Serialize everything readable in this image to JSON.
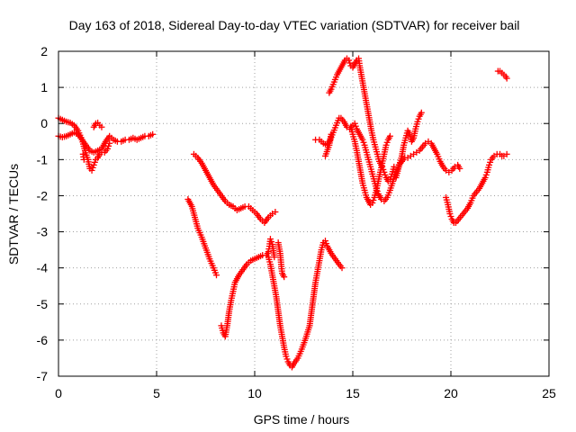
{
  "chart_data": {
    "type": "scatter",
    "title": "Day 163 of 2018, Sidereal Day-to-day VTEC variation (SDTVAR) for receiver bail",
    "xlabel": "GPS time / hours",
    "ylabel": "SDTVAR / TECUs",
    "xlim": [
      0,
      25
    ],
    "ylim": [
      -7,
      2
    ],
    "xticks": [
      0,
      5,
      10,
      15,
      20,
      25
    ],
    "yticks": [
      -7,
      -6,
      -5,
      -4,
      -3,
      -2,
      -1,
      0,
      1,
      2
    ],
    "grid": true,
    "legend": "none",
    "marker": "plus",
    "color": "#ff0000",
    "series": [
      {
        "points": [
          [
            0.0,
            0.15
          ],
          [
            0.2,
            0.1
          ],
          [
            0.4,
            0.05
          ],
          [
            0.6,
            0.02
          ],
          [
            0.8,
            -0.05
          ],
          [
            1.0,
            -0.2
          ],
          [
            1.2,
            -0.45
          ],
          [
            1.35,
            -0.75
          ],
          [
            1.5,
            -1.0
          ],
          [
            1.6,
            -1.25
          ],
          [
            1.7,
            -1.3
          ],
          [
            1.8,
            -1.15
          ],
          [
            1.9,
            -1.0
          ],
          [
            2.0,
            -0.95
          ],
          [
            2.1,
            -0.85
          ],
          [
            2.2,
            -0.8
          ],
          [
            2.35,
            -0.8
          ],
          [
            2.5,
            -0.7
          ],
          [
            2.6,
            -0.55
          ]
        ]
      },
      {
        "points": [
          [
            1.25,
            -0.85
          ],
          [
            1.3,
            -1.0
          ]
        ]
      },
      {
        "points": [
          [
            0.0,
            -0.35
          ],
          [
            0.2,
            -0.38
          ],
          [
            0.4,
            -0.35
          ],
          [
            0.6,
            -0.3
          ],
          [
            0.8,
            -0.25
          ],
          [
            1.0,
            -0.3
          ],
          [
            1.2,
            -0.45
          ],
          [
            1.4,
            -0.6
          ],
          [
            1.6,
            -0.75
          ],
          [
            1.8,
            -0.8
          ],
          [
            2.0,
            -0.75
          ],
          [
            2.2,
            -0.7
          ],
          [
            2.4,
            -0.5
          ],
          [
            2.6,
            -0.35
          ],
          [
            2.8,
            -0.45
          ],
          [
            3.0,
            -0.5
          ],
          [
            3.2,
            -0.5
          ],
          [
            3.4,
            -0.45
          ],
          [
            3.6,
            -0.45
          ],
          [
            3.8,
            -0.4
          ],
          [
            4.0,
            -0.45
          ],
          [
            4.2,
            -0.4
          ],
          [
            4.4,
            -0.35
          ],
          [
            4.6,
            -0.35
          ],
          [
            4.8,
            -0.3
          ]
        ]
      },
      {
        "points": [
          [
            1.8,
            -0.1
          ],
          [
            1.9,
            0.0
          ],
          [
            2.0,
            0.02
          ],
          [
            2.1,
            -0.05
          ],
          [
            2.2,
            -0.1
          ]
        ]
      },
      {
        "points": [
          [
            6.9,
            -0.85
          ],
          [
            7.1,
            -0.95
          ],
          [
            7.3,
            -1.1
          ],
          [
            7.5,
            -1.3
          ],
          [
            7.7,
            -1.5
          ],
          [
            7.9,
            -1.7
          ],
          [
            8.1,
            -1.85
          ],
          [
            8.3,
            -2.0
          ],
          [
            8.5,
            -2.15
          ],
          [
            8.7,
            -2.25
          ],
          [
            8.9,
            -2.3
          ],
          [
            9.1,
            -2.4
          ],
          [
            9.3,
            -2.35
          ],
          [
            9.5,
            -2.3
          ],
          [
            9.7,
            -2.3
          ],
          [
            9.9,
            -2.4
          ],
          [
            10.1,
            -2.5
          ],
          [
            10.3,
            -2.65
          ],
          [
            10.5,
            -2.75
          ],
          [
            10.7,
            -2.6
          ],
          [
            10.9,
            -2.5
          ],
          [
            11.05,
            -2.45
          ]
        ]
      },
      {
        "points": [
          [
            6.6,
            -2.1
          ],
          [
            6.8,
            -2.3
          ],
          [
            6.95,
            -2.6
          ],
          [
            7.1,
            -2.9
          ],
          [
            7.3,
            -3.15
          ],
          [
            7.5,
            -3.45
          ],
          [
            7.7,
            -3.75
          ],
          [
            7.9,
            -4.0
          ],
          [
            8.05,
            -4.2
          ]
        ]
      },
      {
        "points": [
          [
            8.3,
            -5.6
          ],
          [
            8.4,
            -5.8
          ],
          [
            8.5,
            -5.9
          ],
          [
            8.6,
            -5.6
          ],
          [
            8.7,
            -5.2
          ],
          [
            8.8,
            -4.9
          ],
          [
            8.9,
            -4.65
          ],
          [
            9.0,
            -4.4
          ],
          [
            9.2,
            -4.2
          ],
          [
            9.4,
            -4.05
          ],
          [
            9.6,
            -3.9
          ],
          [
            9.8,
            -3.8
          ],
          [
            10.0,
            -3.75
          ],
          [
            10.2,
            -3.7
          ],
          [
            10.4,
            -3.65
          ],
          [
            10.6,
            -3.65
          ],
          [
            10.7,
            -3.55
          ],
          [
            10.75,
            -3.4
          ],
          [
            10.8,
            -3.2
          ],
          [
            10.9,
            -3.35
          ],
          [
            11.0,
            -3.7
          ]
        ]
      },
      {
        "points": [
          [
            11.2,
            -3.3
          ],
          [
            11.3,
            -3.6
          ],
          [
            11.35,
            -3.9
          ],
          [
            11.4,
            -4.15
          ],
          [
            11.5,
            -4.25
          ]
        ]
      },
      {
        "points": [
          [
            10.7,
            -3.7
          ],
          [
            10.8,
            -3.9
          ],
          [
            10.9,
            -4.2
          ],
          [
            11.0,
            -4.5
          ],
          [
            11.1,
            -4.8
          ],
          [
            11.2,
            -5.2
          ],
          [
            11.3,
            -5.6
          ],
          [
            11.4,
            -5.9
          ],
          [
            11.5,
            -6.2
          ],
          [
            11.6,
            -6.45
          ],
          [
            11.7,
            -6.6
          ],
          [
            11.8,
            -6.7
          ],
          [
            11.9,
            -6.75
          ],
          [
            12.0,
            -6.65
          ],
          [
            12.2,
            -6.5
          ],
          [
            12.4,
            -6.25
          ],
          [
            12.6,
            -5.95
          ],
          [
            12.8,
            -5.6
          ],
          [
            12.9,
            -5.2
          ],
          [
            13.0,
            -4.8
          ],
          [
            13.1,
            -4.4
          ],
          [
            13.2,
            -4.1
          ],
          [
            13.3,
            -3.8
          ],
          [
            13.4,
            -3.5
          ],
          [
            13.5,
            -3.3
          ],
          [
            13.6,
            -3.25
          ],
          [
            13.7,
            -3.4
          ],
          [
            13.9,
            -3.6
          ],
          [
            14.1,
            -3.75
          ],
          [
            14.3,
            -3.9
          ],
          [
            14.45,
            -4.0
          ]
        ]
      },
      {
        "points": [
          [
            13.1,
            -0.45
          ],
          [
            13.3,
            -0.45
          ],
          [
            13.5,
            -0.55
          ],
          [
            13.7,
            -0.6
          ],
          [
            13.85,
            -0.45
          ],
          [
            14.0,
            -0.25
          ],
          [
            14.15,
            -0.05
          ],
          [
            14.3,
            0.15
          ],
          [
            14.4,
            0.15
          ],
          [
            14.55,
            0.05
          ],
          [
            14.7,
            -0.1
          ],
          [
            14.85,
            -0.15
          ],
          [
            15.0,
            -0.05
          ],
          [
            15.1,
            0.0
          ],
          [
            15.2,
            -0.15
          ],
          [
            15.35,
            -0.3
          ],
          [
            15.5,
            -0.45
          ],
          [
            15.6,
            -0.6
          ],
          [
            15.7,
            -0.8
          ],
          [
            15.8,
            -1.0
          ],
          [
            15.9,
            -1.2
          ],
          [
            16.0,
            -1.4
          ],
          [
            16.1,
            -1.6
          ],
          [
            16.2,
            -1.8
          ],
          [
            16.3,
            -1.95
          ],
          [
            16.45,
            -2.1
          ],
          [
            16.6,
            -2.15
          ],
          [
            16.75,
            -2.05
          ],
          [
            16.9,
            -1.85
          ],
          [
            17.05,
            -1.6
          ],
          [
            17.2,
            -1.35
          ],
          [
            17.35,
            -1.15
          ],
          [
            17.5,
            -1.05
          ],
          [
            17.65,
            -0.95
          ],
          [
            17.8,
            -0.95
          ],
          [
            17.95,
            -0.9
          ],
          [
            18.1,
            -0.85
          ],
          [
            18.25,
            -0.8
          ],
          [
            18.4,
            -0.75
          ],
          [
            18.55,
            -0.65
          ],
          [
            18.7,
            -0.55
          ],
          [
            18.85,
            -0.5
          ],
          [
            19.0,
            -0.55
          ],
          [
            19.15,
            -0.7
          ],
          [
            19.3,
            -0.85
          ],
          [
            19.45,
            -1.05
          ],
          [
            19.6,
            -1.2
          ],
          [
            19.75,
            -1.3
          ],
          [
            19.9,
            -1.35
          ],
          [
            20.05,
            -1.3
          ],
          [
            20.2,
            -1.2
          ],
          [
            20.35,
            -1.15
          ],
          [
            20.45,
            -1.25
          ]
        ]
      },
      {
        "points": [
          [
            13.6,
            -0.9
          ],
          [
            13.8,
            -0.6
          ],
          [
            13.9,
            -0.3
          ]
        ]
      },
      {
        "points": [
          [
            13.8,
            0.85
          ],
          [
            13.9,
            0.95
          ],
          [
            14.05,
            1.15
          ],
          [
            14.2,
            1.35
          ],
          [
            14.35,
            1.5
          ],
          [
            14.5,
            1.65
          ],
          [
            14.6,
            1.75
          ],
          [
            14.7,
            1.8
          ],
          [
            14.8,
            1.75
          ],
          [
            14.9,
            1.6
          ],
          [
            15.0,
            1.55
          ],
          [
            15.1,
            1.65
          ],
          [
            15.2,
            1.75
          ],
          [
            15.3,
            1.8
          ],
          [
            15.35,
            1.6
          ],
          [
            15.45,
            1.3
          ],
          [
            15.55,
            1.0
          ],
          [
            15.65,
            0.7
          ],
          [
            15.75,
            0.4
          ],
          [
            15.85,
            0.1
          ],
          [
            15.95,
            -0.2
          ],
          [
            16.05,
            -0.45
          ],
          [
            16.15,
            -0.65
          ],
          [
            16.25,
            -0.85
          ],
          [
            16.35,
            -1.05
          ],
          [
            16.5,
            -1.2
          ],
          [
            16.6,
            -1.35
          ],
          [
            16.7,
            -1.5
          ],
          [
            16.8,
            -1.6
          ],
          [
            16.9,
            -1.55
          ],
          [
            17.0,
            -1.4
          ],
          [
            17.1,
            -1.2
          ]
        ]
      },
      {
        "points": [
          [
            14.9,
            -0.1
          ],
          [
            15.0,
            -0.3
          ],
          [
            15.1,
            -0.5
          ],
          [
            15.2,
            -0.75
          ],
          [
            15.3,
            -1.05
          ],
          [
            15.4,
            -1.35
          ],
          [
            15.5,
            -1.65
          ],
          [
            15.6,
            -1.85
          ],
          [
            15.7,
            -2.05
          ],
          [
            15.8,
            -2.15
          ],
          [
            15.9,
            -2.25
          ],
          [
            16.0,
            -2.2
          ],
          [
            16.1,
            -2.05
          ],
          [
            16.2,
            -1.85
          ],
          [
            16.3,
            -1.6
          ],
          [
            16.4,
            -1.35
          ],
          [
            16.5,
            -1.1
          ],
          [
            16.6,
            -0.85
          ],
          [
            16.7,
            -0.6
          ],
          [
            16.8,
            -0.45
          ],
          [
            16.9,
            -0.35
          ]
        ]
      },
      {
        "points": [
          [
            17.2,
            -1.5
          ],
          [
            17.35,
            -1.2
          ],
          [
            17.5,
            -0.9
          ],
          [
            17.6,
            -0.6
          ],
          [
            17.7,
            -0.4
          ],
          [
            17.8,
            -0.2
          ],
          [
            17.9,
            -0.3
          ],
          [
            18.0,
            -0.5
          ],
          [
            18.1,
            -0.4
          ],
          [
            18.2,
            -0.15
          ],
          [
            18.3,
            0.05
          ],
          [
            18.4,
            0.2
          ],
          [
            18.5,
            0.3
          ]
        ]
      },
      {
        "points": [
          [
            19.75,
            -2.05
          ],
          [
            19.85,
            -2.25
          ],
          [
            19.95,
            -2.5
          ],
          [
            20.05,
            -2.65
          ],
          [
            20.15,
            -2.75
          ],
          [
            20.25,
            -2.75
          ],
          [
            20.4,
            -2.65
          ],
          [
            20.55,
            -2.55
          ],
          [
            20.7,
            -2.45
          ],
          [
            20.85,
            -2.35
          ],
          [
            21.0,
            -2.2
          ],
          [
            21.15,
            -2.0
          ],
          [
            21.3,
            -1.9
          ],
          [
            21.45,
            -1.8
          ],
          [
            21.6,
            -1.65
          ],
          [
            21.75,
            -1.5
          ],
          [
            21.85,
            -1.35
          ],
          [
            21.95,
            -1.15
          ],
          [
            22.05,
            -1.0
          ],
          [
            22.2,
            -0.9
          ],
          [
            22.35,
            -0.85
          ],
          [
            22.5,
            -0.85
          ],
          [
            22.6,
            -0.9
          ],
          [
            22.7,
            -0.9
          ],
          [
            22.85,
            -0.85
          ]
        ]
      },
      {
        "points": [
          [
            22.4,
            1.45
          ],
          [
            22.5,
            1.45
          ],
          [
            22.6,
            1.4
          ],
          [
            22.7,
            1.35
          ],
          [
            22.8,
            1.3
          ],
          [
            22.85,
            1.25
          ]
        ]
      }
    ]
  }
}
